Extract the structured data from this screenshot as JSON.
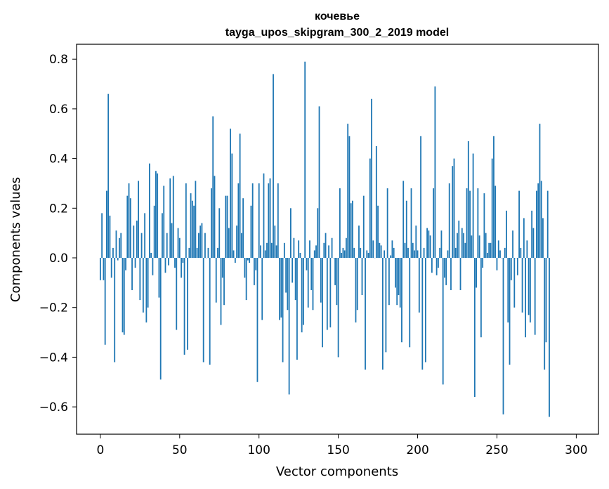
{
  "chart_data": {
    "type": "bar",
    "title": "кочевье",
    "subtitle": "tayga_upos_skipgram_300_2_2019 model",
    "xlabel": "Vector components",
    "ylabel": "Components values",
    "xlim": [
      -15,
      314
    ],
    "ylim": [
      -0.71,
      0.86
    ],
    "xticks": [
      0,
      50,
      100,
      150,
      200,
      250,
      300
    ],
    "xtick_labels": [
      "0",
      "50",
      "100",
      "150",
      "200",
      "250",
      "300"
    ],
    "yticks": [
      -0.6,
      -0.4,
      -0.2,
      0.0,
      0.2,
      0.4,
      0.6,
      0.8
    ],
    "ytick_labels": [
      "−0.6",
      "−0.4",
      "−0.2",
      "0.0",
      "0.2",
      "0.4",
      "0.6",
      "0.8"
    ],
    "grid": false,
    "bar_color": "#1f77b4",
    "x": "0..299",
    "values": [
      -0.09,
      0.18,
      -0.09,
      -0.35,
      0.27,
      0.66,
      0.17,
      -0.08,
      0.04,
      -0.42,
      0.11,
      -0.01,
      0.08,
      0.1,
      -0.3,
      -0.31,
      -0.05,
      0.25,
      0.3,
      0.24,
      -0.13,
      0.13,
      -0.04,
      0.15,
      0.31,
      -0.17,
      0.1,
      -0.22,
      0.18,
      -0.26,
      -0.2,
      0.38,
      0.02,
      -0.07,
      0.21,
      0.35,
      0.34,
      -0.16,
      -0.49,
      0.18,
      0.29,
      -0.06,
      0.1,
      -0.03,
      0.32,
      0.14,
      0.33,
      -0.04,
      -0.29,
      0.12,
      0.08,
      -0.08,
      -0.02,
      -0.39,
      0.3,
      -0.37,
      0.04,
      0.26,
      0.23,
      0.21,
      0.31,
      0.04,
      0.1,
      0.13,
      0.14,
      -0.42,
      0.1,
      0.0,
      0.04,
      -0.43,
      0.28,
      0.57,
      0.33,
      -0.18,
      0.04,
      0.2,
      -0.27,
      -0.08,
      -0.19,
      0.25,
      0.25,
      0.12,
      0.52,
      0.42,
      0.03,
      -0.02,
      0.13,
      0.3,
      0.5,
      0.1,
      0.24,
      -0.08,
      -0.17,
      -0.01,
      -0.02,
      0.21,
      0.3,
      -0.11,
      -0.05,
      -0.5,
      0.3,
      0.05,
      -0.25,
      0.34,
      0.03,
      0.06,
      0.3,
      0.32,
      0.06,
      0.74,
      0.13,
      0.05,
      0.3,
      -0.25,
      -0.24,
      -0.42,
      0.06,
      -0.14,
      -0.21,
      -0.55,
      0.2,
      -0.1,
      0.08,
      -0.17,
      -0.41,
      0.07,
      0.02,
      -0.3,
      -0.27,
      0.79,
      -0.05,
      -0.2,
      0.07,
      -0.13,
      -0.21,
      0.03,
      0.05,
      0.2,
      0.61,
      -0.18,
      -0.36,
      0.06,
      0.1,
      -0.29,
      0.05,
      -0.28,
      0.08,
      0.0,
      -0.11,
      -0.19,
      -0.4,
      0.28,
      0.02,
      0.04,
      0.03,
      0.08,
      0.54,
      0.49,
      0.22,
      0.23,
      0.04,
      -0.26,
      -0.21,
      0.13,
      0.04,
      -0.15,
      0.25,
      -0.45,
      0.03,
      0.02,
      0.4,
      0.64,
      0.07,
      0.0,
      0.45,
      0.21,
      0.06,
      0.05,
      -0.45,
      0.03,
      -0.38,
      0.28,
      -0.19,
      0.01,
      0.07,
      0.04,
      -0.12,
      -0.19,
      -0.15,
      -0.2,
      -0.34,
      0.31,
      0.06,
      0.23,
      0.04,
      -0.36,
      0.28,
      0.06,
      0.03,
      0.13,
      0.03,
      -0.22,
      0.49,
      -0.45,
      0.04,
      -0.42,
      0.12,
      0.11,
      0.09,
      -0.06,
      0.28,
      0.69,
      -0.07,
      -0.04,
      0.04,
      0.11,
      -0.51,
      -0.08,
      -0.11,
      0.03,
      0.3,
      -0.13,
      0.37,
      0.4,
      0.04,
      0.1,
      0.15,
      -0.13,
      0.12,
      0.1,
      0.06,
      0.28,
      0.47,
      0.27,
      0.09,
      0.42,
      -0.56,
      -0.12,
      0.28,
      0.09,
      -0.32,
      -0.04,
      0.26,
      0.1,
      0.02,
      0.06,
      0.06,
      0.4,
      0.49,
      0.29,
      -0.05,
      0.07,
      0.03,
      0.0,
      -0.63,
      0.04,
      0.19,
      -0.26,
      -0.43,
      -0.09,
      0.11,
      -0.2,
      0.0,
      -0.07,
      0.27,
      0.04,
      -0.22,
      0.16,
      -0.32,
      0.07,
      -0.23,
      -0.26,
      0.19,
      0.12,
      -0.31,
      0.27,
      0.3,
      0.54,
      0.31,
      0.16,
      -0.45,
      -0.34,
      0.27,
      -0.64
    ]
  }
}
